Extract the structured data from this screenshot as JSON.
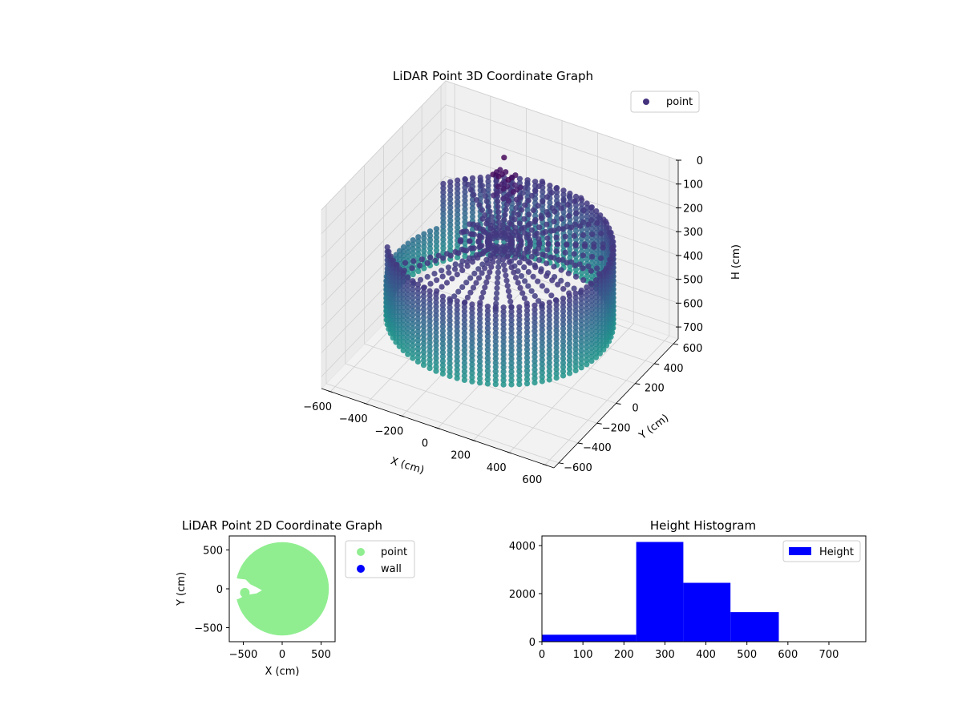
{
  "chart_data": [
    {
      "type": "scatter",
      "projection": "3d",
      "title": "LiDAR Point 3D Coordinate Graph",
      "xlabel": "X (cm)",
      "ylabel": "Y (cm)",
      "zlabel": "H (cm)",
      "xlim": [
        -650,
        650
      ],
      "ylim": [
        -650,
        650
      ],
      "zlim": [
        750,
        0
      ],
      "zaxis_inverted": true,
      "x_ticks": [
        -600,
        -400,
        -200,
        0,
        200,
        400,
        600
      ],
      "y_ticks": [
        -600,
        -400,
        -200,
        0,
        200,
        400,
        600
      ],
      "z_ticks": [
        0,
        100,
        200,
        300,
        400,
        500,
        600,
        700
      ],
      "legend": {
        "entries": [
          "point"
        ],
        "placement": "top-right"
      },
      "colormap": "viridis",
      "grid": true,
      "description_data": {
        "wall_radius_cm": 560,
        "wall_height_range_cm": [
          240,
          580
        ],
        "ceiling_height_cm": 230,
        "gap_direction": "negative-x",
        "object_near_cm": {
          "x": -120,
          "y": 400,
          "h": 100
        }
      }
    },
    {
      "type": "scatter",
      "title": "LiDAR Point 2D Coordinate Graph",
      "xlabel": "X (cm)",
      "ylabel": "Y (cm)",
      "xlim": [
        -680,
        680
      ],
      "ylim": [
        -680,
        680
      ],
      "x_ticks": [
        -500,
        0,
        500
      ],
      "y_ticks": [
        -500,
        0,
        500
      ],
      "series": [
        {
          "name": "point",
          "color": "#90ee90",
          "shape": "filled disk, radius ~600 cm, notch toward -x"
        },
        {
          "name": "wall",
          "color": "#0000ff",
          "shape": "none visible"
        }
      ],
      "legend": {
        "placement": "outside-right"
      },
      "grid": false
    },
    {
      "type": "bar",
      "title": "Height Histogram",
      "bin_edges": [
        0,
        230,
        345,
        460,
        578,
        780
      ],
      "values": [
        290,
        4150,
        2450,
        1230,
        0
      ],
      "xlim": [
        0,
        790
      ],
      "ylim": [
        0,
        4400
      ],
      "x_ticks": [
        0,
        100,
        200,
        300,
        400,
        500,
        600,
        700
      ],
      "y_ticks": [
        0,
        2000,
        4000
      ],
      "series": [
        {
          "name": "Height",
          "color": "#0000ff"
        }
      ],
      "legend": {
        "placement": "top-right"
      },
      "grid": false
    }
  ]
}
